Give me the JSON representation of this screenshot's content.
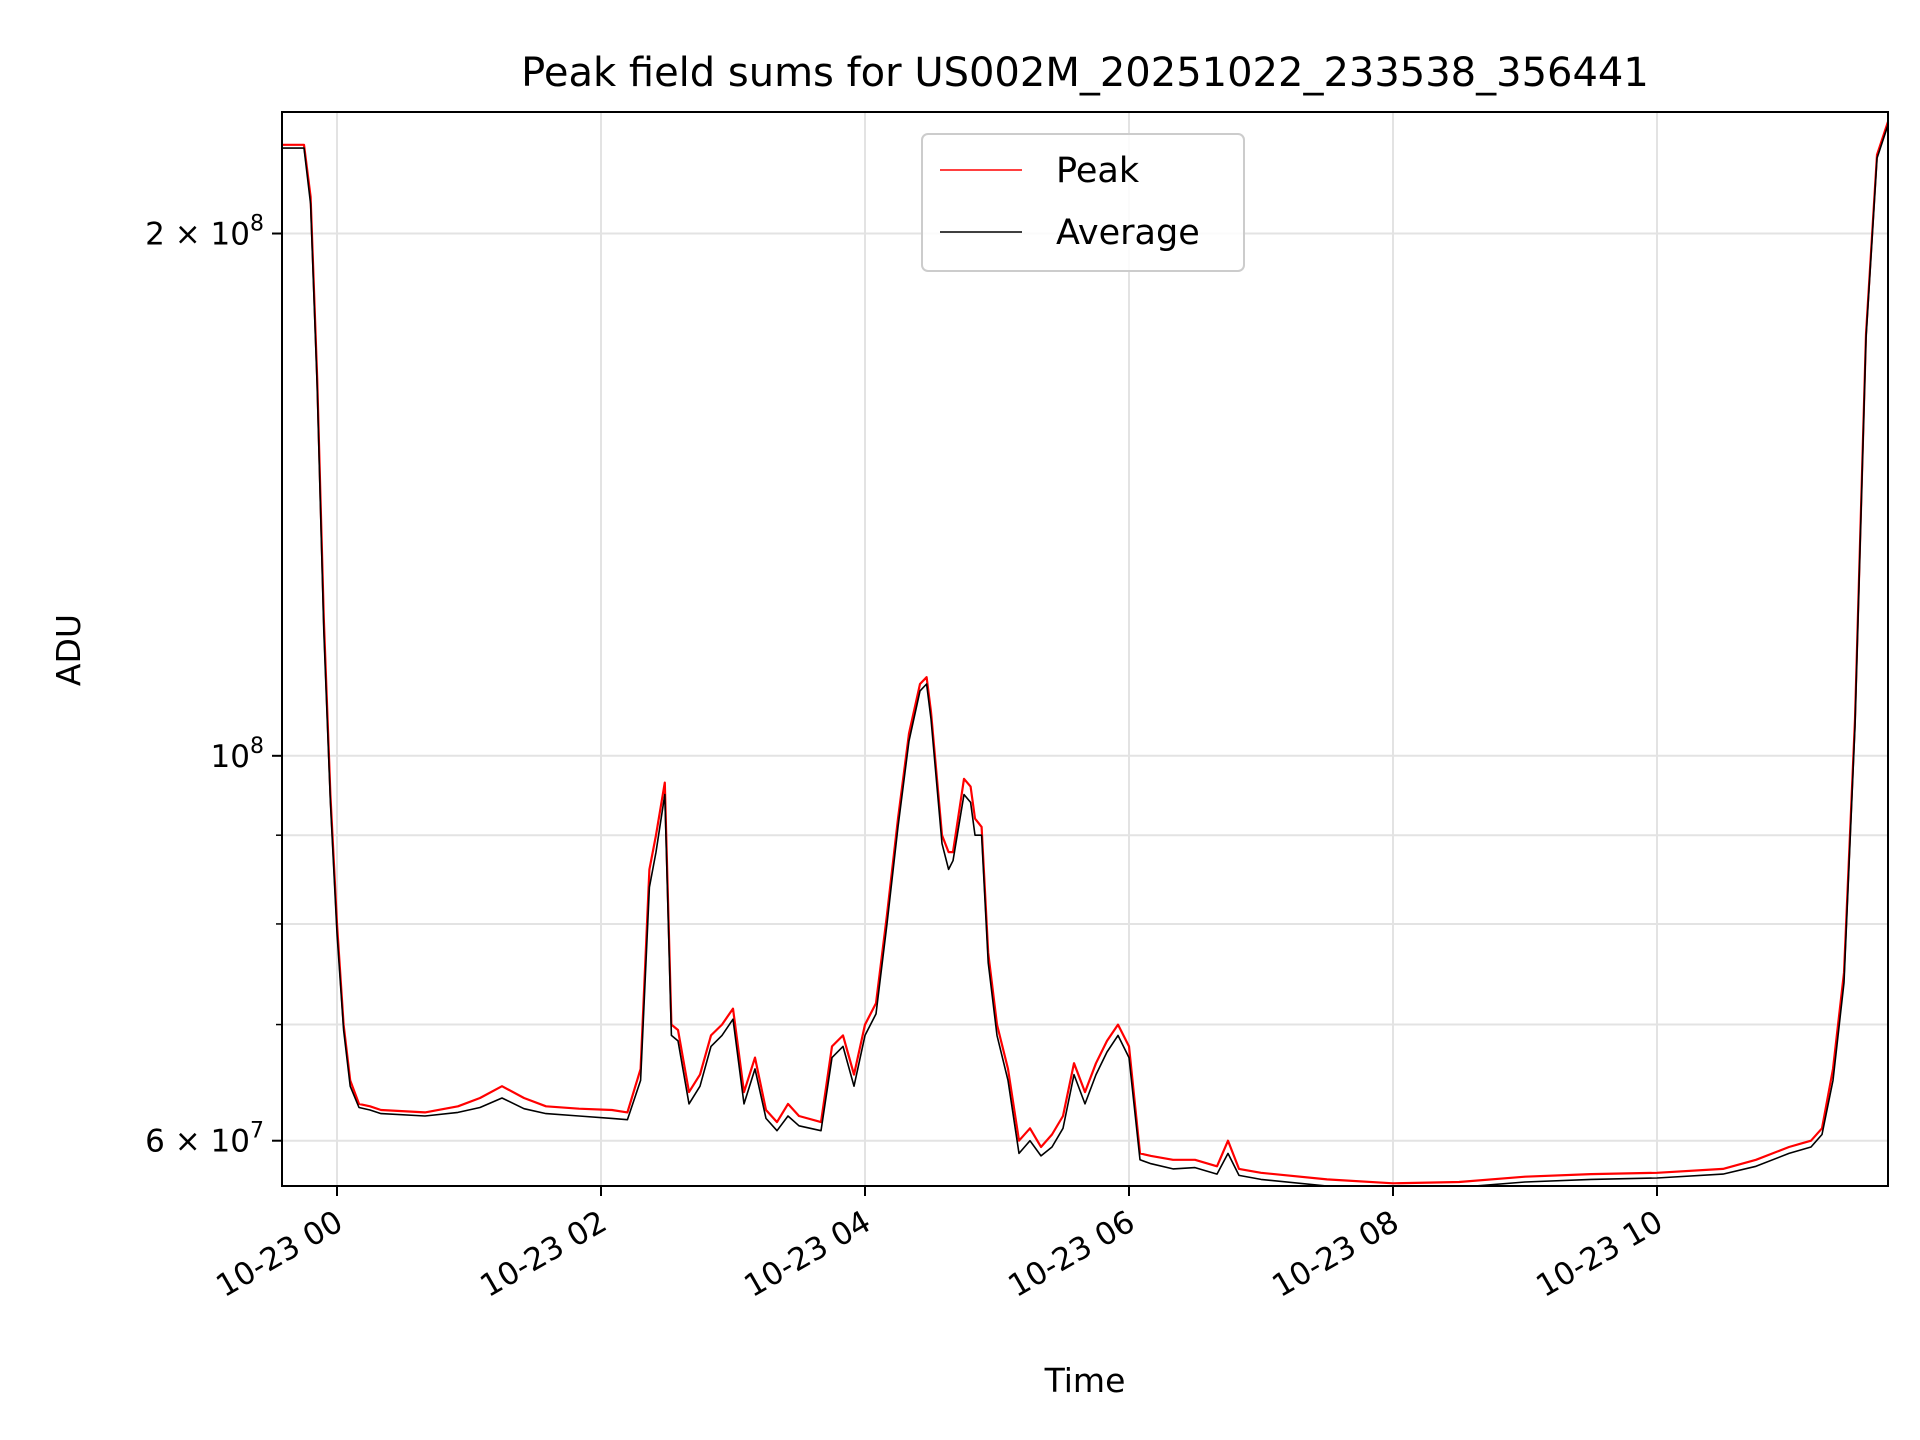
{
  "chart_data": {
    "type": "line",
    "title": "Peak field sums for US002M_20251022_233538_356441",
    "xlabel": "Time",
    "ylabel": "ADU",
    "yscale": "log",
    "grid": true,
    "legend_placement": "top-center",
    "xlim": [
      "2025-10-22 23:35",
      "2025-10-23 11:45"
    ],
    "ylim": [
      56500000,
      235000000
    ],
    "x_ticks": [
      {
        "value": "2025-10-23 00:00",
        "label": "10-23 00"
      },
      {
        "value": "2025-10-23 02:00",
        "label": "10-23 02"
      },
      {
        "value": "2025-10-23 04:00",
        "label": "10-23 04"
      },
      {
        "value": "2025-10-23 06:00",
        "label": "10-23 06"
      },
      {
        "value": "2025-10-23 08:00",
        "label": "10-23 08"
      },
      {
        "value": "2025-10-23 10:00",
        "label": "10-23 10"
      }
    ],
    "y_ticks": [
      {
        "value": 60000000,
        "base": "6 × 10",
        "exp": "7"
      },
      {
        "value": 100000000,
        "base": "10",
        "exp": "8"
      },
      {
        "value": 200000000,
        "base": "2 × 10",
        "exp": "8"
      }
    ],
    "y_minor_ticks": [
      70000000,
      80000000,
      90000000
    ],
    "series": [
      {
        "name": "Peak",
        "color": "#ff0000",
        "x": [
          "2025-10-22 23:35",
          "2025-10-22 23:45",
          "2025-10-22 23:48",
          "2025-10-22 23:51",
          "2025-10-22 23:54",
          "2025-10-22 23:57",
          "2025-10-23 00:00",
          "2025-10-23 00:03",
          "2025-10-23 00:06",
          "2025-10-23 00:10",
          "2025-10-23 00:15",
          "2025-10-23 00:20",
          "2025-10-23 00:40",
          "2025-10-23 00:55",
          "2025-10-23 01:05",
          "2025-10-23 01:15",
          "2025-10-23 01:25",
          "2025-10-23 01:35",
          "2025-10-23 01:50",
          "2025-10-23 02:05",
          "2025-10-23 02:12",
          "2025-10-23 02:18",
          "2025-10-23 02:22",
          "2025-10-23 02:25",
          "2025-10-23 02:29",
          "2025-10-23 02:32",
          "2025-10-23 02:35",
          "2025-10-23 02:40",
          "2025-10-23 02:45",
          "2025-10-23 02:50",
          "2025-10-23 02:55",
          "2025-10-23 03:00",
          "2025-10-23 03:05",
          "2025-10-23 03:10",
          "2025-10-23 03:15",
          "2025-10-23 03:20",
          "2025-10-23 03:25",
          "2025-10-23 03:30",
          "2025-10-23 03:40",
          "2025-10-23 03:45",
          "2025-10-23 03:50",
          "2025-10-23 03:55",
          "2025-10-23 04:00",
          "2025-10-23 04:05",
          "2025-10-23 04:10",
          "2025-10-23 04:15",
          "2025-10-23 04:20",
          "2025-10-23 04:25",
          "2025-10-23 04:28",
          "2025-10-23 04:30",
          "2025-10-23 04:35",
          "2025-10-23 04:38",
          "2025-10-23 04:40",
          "2025-10-23 04:45",
          "2025-10-23 04:48",
          "2025-10-23 04:50",
          "2025-10-23 04:53",
          "2025-10-23 04:56",
          "2025-10-23 05:00",
          "2025-10-23 05:05",
          "2025-10-23 05:10",
          "2025-10-23 05:15",
          "2025-10-23 05:20",
          "2025-10-23 05:25",
          "2025-10-23 05:30",
          "2025-10-23 05:35",
          "2025-10-23 05:40",
          "2025-10-23 05:45",
          "2025-10-23 05:50",
          "2025-10-23 05:55",
          "2025-10-23 06:00",
          "2025-10-23 06:05",
          "2025-10-23 06:10",
          "2025-10-23 06:20",
          "2025-10-23 06:30",
          "2025-10-23 06:40",
          "2025-10-23 06:45",
          "2025-10-23 06:50",
          "2025-10-23 07:00",
          "2025-10-23 07:30",
          "2025-10-23 08:00",
          "2025-10-23 08:30",
          "2025-10-23 09:00",
          "2025-10-23 09:30",
          "2025-10-23 10:00",
          "2025-10-23 10:30",
          "2025-10-23 10:45",
          "2025-10-23 11:00",
          "2025-10-23 11:10",
          "2025-10-23 11:15",
          "2025-10-23 11:20",
          "2025-10-23 11:25",
          "2025-10-23 11:30",
          "2025-10-23 11:35",
          "2025-10-23 11:40",
          "2025-10-23 11:45"
        ],
        "values": [
          225000000,
          225000000,
          210000000,
          165000000,
          120000000,
          95000000,
          80000000,
          70000000,
          65000000,
          63000000,
          62800000,
          62500000,
          62300000,
          62800000,
          63500000,
          64500000,
          63500000,
          62800000,
          62600000,
          62500000,
          62300000,
          66000000,
          86000000,
          90000000,
          96500000,
          70000000,
          69500000,
          64000000,
          65500000,
          69000000,
          70000000,
          71500000,
          64000000,
          67000000,
          62500000,
          61500000,
          63000000,
          62000000,
          61500000,
          68000000,
          69000000,
          65500000,
          70000000,
          72000000,
          81000000,
          92000000,
          103000000,
          110000000,
          111000000,
          106000000,
          90000000,
          88000000,
          88000000,
          97000000,
          96000000,
          92000000,
          91000000,
          77000000,
          70000000,
          66000000,
          60000000,
          61000000,
          59500000,
          60500000,
          62000000,
          66500000,
          64000000,
          66500000,
          68500000,
          70000000,
          68000000,
          59000000,
          58800000,
          58500000,
          58500000,
          58000000,
          60000000,
          57800000,
          57500000,
          57000000,
          56700000,
          56800000,
          57200000,
          57400000,
          57500000,
          57800000,
          58500000,
          59500000,
          60000000,
          61000000,
          66000000,
          75000000,
          105000000,
          175000000,
          222000000,
          232000000
        ]
      },
      {
        "name": "Average",
        "color": "#000000",
        "x": [
          "2025-10-22 23:35",
          "2025-10-22 23:45",
          "2025-10-22 23:48",
          "2025-10-22 23:51",
          "2025-10-22 23:54",
          "2025-10-22 23:57",
          "2025-10-23 00:00",
          "2025-10-23 00:03",
          "2025-10-23 00:06",
          "2025-10-23 00:10",
          "2025-10-23 00:15",
          "2025-10-23 00:20",
          "2025-10-23 00:40",
          "2025-10-23 00:55",
          "2025-10-23 01:05",
          "2025-10-23 01:15",
          "2025-10-23 01:25",
          "2025-10-23 01:35",
          "2025-10-23 01:50",
          "2025-10-23 02:05",
          "2025-10-23 02:12",
          "2025-10-23 02:18",
          "2025-10-23 02:22",
          "2025-10-23 02:25",
          "2025-10-23 02:29",
          "2025-10-23 02:32",
          "2025-10-23 02:35",
          "2025-10-23 02:40",
          "2025-10-23 02:45",
          "2025-10-23 02:50",
          "2025-10-23 02:55",
          "2025-10-23 03:00",
          "2025-10-23 03:05",
          "2025-10-23 03:10",
          "2025-10-23 03:15",
          "2025-10-23 03:20",
          "2025-10-23 03:25",
          "2025-10-23 03:30",
          "2025-10-23 03:40",
          "2025-10-23 03:45",
          "2025-10-23 03:50",
          "2025-10-23 03:55",
          "2025-10-23 04:00",
          "2025-10-23 04:05",
          "2025-10-23 04:10",
          "2025-10-23 04:15",
          "2025-10-23 04:20",
          "2025-10-23 04:25",
          "2025-10-23 04:28",
          "2025-10-23 04:30",
          "2025-10-23 04:35",
          "2025-10-23 04:38",
          "2025-10-23 04:40",
          "2025-10-23 04:45",
          "2025-10-23 04:48",
          "2025-10-23 04:50",
          "2025-10-23 04:53",
          "2025-10-23 04:56",
          "2025-10-23 05:00",
          "2025-10-23 05:05",
          "2025-10-23 05:10",
          "2025-10-23 05:15",
          "2025-10-23 05:20",
          "2025-10-23 05:25",
          "2025-10-23 05:30",
          "2025-10-23 05:35",
          "2025-10-23 05:40",
          "2025-10-23 05:45",
          "2025-10-23 05:50",
          "2025-10-23 05:55",
          "2025-10-23 06:00",
          "2025-10-23 06:05",
          "2025-10-23 06:10",
          "2025-10-23 06:20",
          "2025-10-23 06:30",
          "2025-10-23 06:40",
          "2025-10-23 06:45",
          "2025-10-23 06:50",
          "2025-10-23 07:00",
          "2025-10-23 07:30",
          "2025-10-23 08:00",
          "2025-10-23 08:30",
          "2025-10-23 09:00",
          "2025-10-23 09:30",
          "2025-10-23 10:00",
          "2025-10-23 10:30",
          "2025-10-23 10:45",
          "2025-10-23 11:00",
          "2025-10-23 11:10",
          "2025-10-23 11:15",
          "2025-10-23 11:20",
          "2025-10-23 11:25",
          "2025-10-23 11:30",
          "2025-10-23 11:35",
          "2025-10-23 11:40",
          "2025-10-23 11:45"
        ],
        "values": [
          224000000,
          224000000,
          208000000,
          163000000,
          118000000,
          94000000,
          79000000,
          69500000,
          64500000,
          62700000,
          62500000,
          62200000,
          62000000,
          62300000,
          62700000,
          63500000,
          62600000,
          62200000,
          62000000,
          61800000,
          61700000,
          65000000,
          84000000,
          88000000,
          95000000,
          69000000,
          68500000,
          63000000,
          64500000,
          68000000,
          69000000,
          70500000,
          63000000,
          66000000,
          61800000,
          60800000,
          62000000,
          61200000,
          60800000,
          67000000,
          68000000,
          64500000,
          69000000,
          71000000,
          80000000,
          91000000,
          102000000,
          109000000,
          110000000,
          105000000,
          89000000,
          86000000,
          87000000,
          95000000,
          94000000,
          90000000,
          90000000,
          76000000,
          69000000,
          65000000,
          59000000,
          60000000,
          58800000,
          59500000,
          61000000,
          65500000,
          63000000,
          65500000,
          67500000,
          69000000,
          67000000,
          58500000,
          58200000,
          57800000,
          57900000,
          57400000,
          59000000,
          57300000,
          57000000,
          56500000,
          56300000,
          56400000,
          56800000,
          57000000,
          57100000,
          57400000,
          58000000,
          59000000,
          59500000,
          60500000,
          65000000,
          74000000,
          104000000,
          174000000,
          221000000,
          231000000
        ]
      }
    ]
  }
}
